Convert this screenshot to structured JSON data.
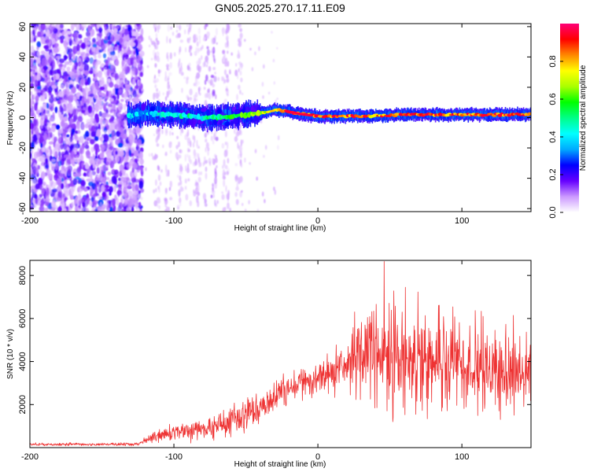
{
  "figure_title": "GN05.2025.270.17.11.E09",
  "chart_data": [
    {
      "type": "heatmap",
      "title": "GN05.2025.270.17.11.E09",
      "xlabel": "Height of straight line (km)",
      "ylabel": "Frequency (Hz)",
      "xlim": [
        -200,
        148
      ],
      "ylim": [
        -62,
        62
      ],
      "x_ticks": [
        -200,
        -100,
        0,
        100
      ],
      "x_tick_labels": [
        "-200",
        "-100",
        "0",
        "100"
      ],
      "y_ticks": [
        -60,
        -40,
        -20,
        0,
        20,
        40,
        60
      ],
      "y_tick_labels": [
        "-60",
        "-40",
        "-20",
        "0",
        "20",
        "40",
        "60"
      ],
      "description_trace": {
        "x": [
          -130,
          -120,
          -110,
          -100,
          -90,
          -80,
          -70,
          -60,
          -50,
          -40,
          -30,
          -20,
          -10,
          0,
          20,
          40,
          60,
          80,
          100,
          120,
          148
        ],
        "frequency": [
          1,
          3,
          2,
          2,
          1,
          0,
          0,
          1,
          2,
          3,
          5,
          4,
          2,
          1,
          1,
          1,
          2,
          2,
          2,
          2,
          2
        ],
        "amplitude": [
          0.4,
          0.35,
          0.4,
          0.4,
          0.45,
          0.45,
          0.55,
          0.6,
          0.6,
          0.65,
          0.75,
          0.85,
          0.85,
          0.85,
          0.85,
          0.8,
          0.85,
          0.85,
          0.85,
          0.85,
          0.85
        ]
      },
      "noise_region_x": [
        -200,
        -122
      ],
      "colorbar": {
        "label": "Normalized spectral amplitude",
        "range": [
          0,
          1
        ],
        "ticks": [
          0.0,
          0.2,
          0.4,
          0.6,
          0.8
        ],
        "tick_labels": [
          "0.0",
          "0.2",
          "0.4",
          "0.6",
          "0.8"
        ],
        "colors": [
          "#ffffff",
          "#cc99ff",
          "#6600ff",
          "#0000ff",
          "#00aaff",
          "#00ffff",
          "#00ff88",
          "#00ff00",
          "#aaff00",
          "#ffff00",
          "#ff8800",
          "#ff0000",
          "#ff0077"
        ]
      }
    },
    {
      "type": "line",
      "xlabel": "Height of straight line (km)",
      "ylabel": "SNR (10 * v/v)",
      "xlim": [
        -200,
        148
      ],
      "ylim": [
        0,
        8700
      ],
      "x_ticks": [
        -200,
        -100,
        0,
        100
      ],
      "x_tick_labels": [
        "-200",
        "-100",
        "0",
        "100"
      ],
      "y_ticks": [
        2000,
        4000,
        6000,
        8000
      ],
      "y_tick_labels": [
        "2000",
        "4000",
        "6000",
        "8000"
      ],
      "color": "#ee3333",
      "envelope": {
        "x": [
          -200,
          -150,
          -125,
          -115,
          -100,
          -80,
          -60,
          -45,
          -35,
          -20,
          0,
          20,
          30,
          40,
          50,
          60,
          80,
          100,
          120,
          148
        ],
        "mean": [
          150,
          150,
          160,
          500,
          700,
          800,
          1300,
          1700,
          2100,
          2800,
          3200,
          3800,
          4100,
          4200,
          4100,
          4000,
          3900,
          3800,
          3600,
          3400
        ],
        "spread": [
          70,
          70,
          80,
          300,
          400,
          500,
          700,
          900,
          800,
          700,
          800,
          1200,
          1700,
          2200,
          2300,
          2200,
          2000,
          1900,
          1800,
          1600
        ]
      },
      "peak": {
        "x": 46,
        "y": 8650
      }
    }
  ]
}
